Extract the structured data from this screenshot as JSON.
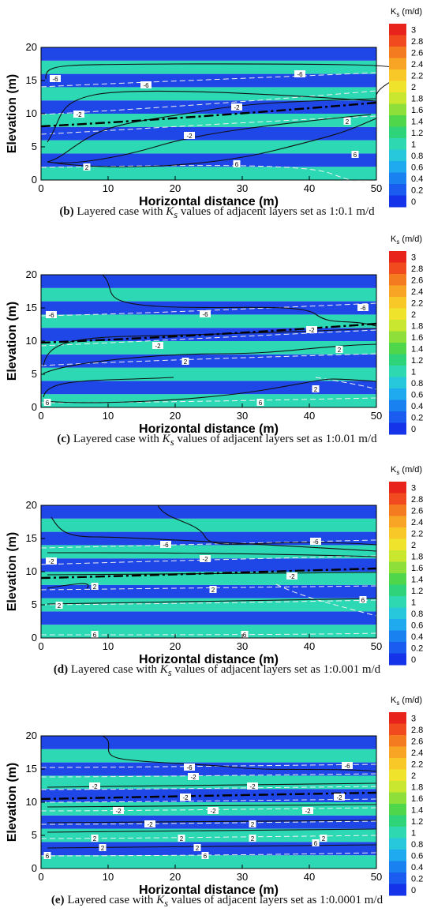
{
  "colorbar": {
    "title": "K",
    "title_sub": "s",
    "title_unit": " (m/d)",
    "ticks": [
      "3",
      "2.8",
      "2.6",
      "2.4",
      "2.2",
      "2",
      "1.8",
      "1.6",
      "1.4",
      "1.2",
      "1",
      "0.8",
      "0.6",
      "0.4",
      "0.2",
      "0"
    ],
    "colors": [
      "#e8231c",
      "#f04a1e",
      "#f47b20",
      "#f8a424",
      "#f8c828",
      "#f0e32c",
      "#c9e72f",
      "#8fdf3a",
      "#4fd64a",
      "#2fd47a",
      "#2ed8b0",
      "#28c8dc",
      "#1fa9ee",
      "#1a82f0",
      "#1a5cf0",
      "#1533e8"
    ]
  },
  "layer_colors": {
    "low": "#1f46e6",
    "high": "#2cd9b4"
  },
  "line_colors": {
    "streamline": "#111111",
    "head_contour": "#f0f0f0",
    "water_table": "#000000"
  },
  "panels": [
    {
      "caption_letter": "b",
      "caption_text": " Layered case with ",
      "caption_k": "K",
      "caption_sub": "s",
      "caption_rest": " values of adjacent layers set as 1:0.1 m/d",
      "chart_data": {
        "type": "heatmap",
        "xlabel": "Horizontal distance (m)",
        "ylabel": "Elevation (m)",
        "xlim": [
          0,
          50
        ],
        "ylim": [
          0,
          20
        ],
        "xticks": [
          "0",
          "10",
          "20",
          "30",
          "40",
          "50"
        ],
        "yticks": [
          "0",
          "5",
          "10",
          "15",
          "20"
        ],
        "layer_pattern": "alternating 2 m layers, Ks = 1 and 0.1 m/d",
        "contour_labels": [
          "-6",
          "-6",
          "-2",
          "-2",
          "-2",
          "2",
          "2",
          "6",
          "6",
          "-6"
        ]
      }
    },
    {
      "caption_letter": "c",
      "caption_text": " Layered case with ",
      "caption_k": "K",
      "caption_sub": "s",
      "caption_rest": " values of adjacent layers set as 1:0.01 m/d",
      "chart_data": {
        "type": "heatmap",
        "xlabel": "Horizontal distance (m)",
        "ylabel": "Elevation (m)",
        "xlim": [
          0,
          50
        ],
        "ylim": [
          0,
          20
        ],
        "xticks": [
          "0",
          "10",
          "20",
          "30",
          "40",
          "50"
        ],
        "yticks": [
          "0",
          "5",
          "10",
          "15",
          "20"
        ],
        "layer_pattern": "alternating 2 m layers, Ks = 1 and 0.01 m/d",
        "contour_labels": [
          "-6",
          "-6",
          "-6",
          "-2",
          "-2",
          "2",
          "2",
          "6",
          "6",
          "2"
        ]
      }
    },
    {
      "caption_letter": "d",
      "caption_text": " Layered case with ",
      "caption_k": "K",
      "caption_sub": "s",
      "caption_rest": " values of adjacent layers set as 1:0.001 m/d",
      "chart_data": {
        "type": "heatmap",
        "xlabel": "Horizontal distance (m)",
        "ylabel": "Elevation (m)",
        "xlim": [
          0,
          50
        ],
        "ylim": [
          0,
          20
        ],
        "xticks": [
          "0",
          "10",
          "20",
          "30",
          "40",
          "50"
        ],
        "yticks": [
          "0",
          "5",
          "10",
          "15",
          "20"
        ],
        "layer_pattern": "alternating 2 m layers, Ks = 1 and 0.001 m/d",
        "contour_labels": [
          "-6",
          "-6",
          "-2",
          "-2",
          "-2",
          "2",
          "2",
          "2",
          "6",
          "6",
          "6"
        ]
      }
    },
    {
      "caption_letter": "e",
      "caption_text": " Layered case with ",
      "caption_k": "K",
      "caption_sub": "s",
      "caption_rest": " values of adjacent layers set as 1:0.0001 m/d",
      "chart_data": {
        "type": "heatmap",
        "xlabel": "Horizontal distance (m)",
        "ylabel": "Elevation (m)",
        "xlim": [
          0,
          50
        ],
        "ylim": [
          0,
          20
        ],
        "xticks": [
          "0",
          "10",
          "20",
          "30",
          "40",
          "50"
        ],
        "yticks": [
          "0",
          "5",
          "10",
          "15",
          "20"
        ],
        "layer_pattern": "alternating 2 m layers, Ks = 1 and 0.0001 m/d",
        "contour_labels": [
          "-6",
          "-6",
          "-2",
          "-2",
          "-2",
          "-2",
          "-2",
          "-2",
          "-2",
          "-2",
          "-2",
          "2",
          "2",
          "2",
          "2",
          "2",
          "2",
          "2",
          "6",
          "6",
          "6"
        ]
      }
    }
  ]
}
